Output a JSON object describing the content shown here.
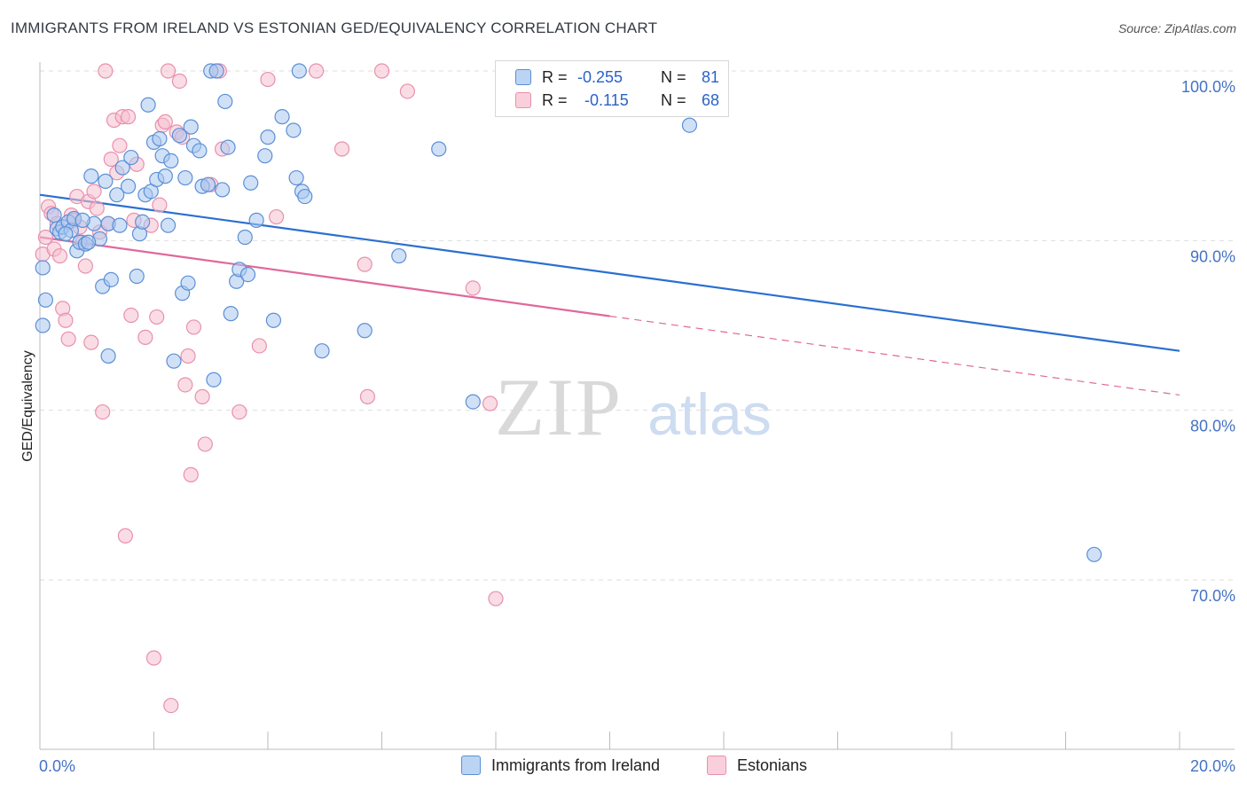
{
  "title": "IMMIGRANTS FROM IRELAND VS ESTONIAN GED/EQUIVALENCY CORRELATION CHART",
  "source": "Source: ZipAtlas.com",
  "watermark": {
    "zip": "ZIP",
    "atlas": "atlas"
  },
  "legend": {
    "rows": [
      {
        "r_label": "R =",
        "r_value": "-0.255",
        "n_label": "N =",
        "n_value": "81"
      },
      {
        "r_label": "R =",
        "r_value": "-0.115",
        "n_label": "N =",
        "n_value": "68"
      }
    ]
  },
  "bottom_legend": [
    "Immigrants from Ireland",
    "Estonians"
  ],
  "colors": {
    "blue_fill": "#aac8f0",
    "blue_stroke": "#5b8fd6",
    "blue_line": "#2a6fd0",
    "pink_fill": "#f6bfd0",
    "pink_stroke": "#e890ae",
    "pink_line": "#e0689a",
    "grid": "#dddddd",
    "tick_text": "#4472c4"
  },
  "chart_data": {
    "type": "scatter",
    "title": "IMMIGRANTS FROM IRELAND VS ESTONIAN GED/EQUIVALENCY CORRELATION CHART",
    "xlabel": "",
    "ylabel": "GED/Equivalency",
    "xlim": [
      0,
      20
    ],
    "ylim": [
      60.5,
      102.5
    ],
    "x_tick_labels": [
      "0.0%",
      "20.0%"
    ],
    "y_ticks": [
      70,
      80,
      90,
      100
    ],
    "y_tick_labels": [
      "70.0%",
      "80.0%",
      "90.0%",
      "100.0%"
    ],
    "grid": true,
    "legend_position": "top-center",
    "series": [
      {
        "name": "Immigrants from Ireland",
        "color": "#aac8f0",
        "r": -0.255,
        "n": 81,
        "trend": {
          "x": [
            0,
            20
          ],
          "y": [
            92.7,
            83.5
          ],
          "dashed_from": null
        },
        "points": [
          [
            0.05,
            88.4
          ],
          [
            0.1,
            86.5
          ],
          [
            0.05,
            85.0
          ],
          [
            0.25,
            91.5
          ],
          [
            0.3,
            90.7
          ],
          [
            0.35,
            90.5
          ],
          [
            0.4,
            90.8
          ],
          [
            0.5,
            91.1
          ],
          [
            0.55,
            90.6
          ],
          [
            0.6,
            91.3
          ],
          [
            0.65,
            89.4
          ],
          [
            0.7,
            89.9
          ],
          [
            0.8,
            89.8
          ],
          [
            0.9,
            93.8
          ],
          [
            0.95,
            91.0
          ],
          [
            1.05,
            90.1
          ],
          [
            1.1,
            87.3
          ],
          [
            1.15,
            93.5
          ],
          [
            1.2,
            91.0
          ],
          [
            1.25,
            87.7
          ],
          [
            1.35,
            92.7
          ],
          [
            1.45,
            94.3
          ],
          [
            1.55,
            93.2
          ],
          [
            1.6,
            94.9
          ],
          [
            1.7,
            87.9
          ],
          [
            1.75,
            90.4
          ],
          [
            1.8,
            91.1
          ],
          [
            1.85,
            92.7
          ],
          [
            1.9,
            98.0
          ],
          [
            1.95,
            92.9
          ],
          [
            2.0,
            95.8
          ],
          [
            2.05,
            93.6
          ],
          [
            2.1,
            96.0
          ],
          [
            2.15,
            95.0
          ],
          [
            2.2,
            93.8
          ],
          [
            2.25,
            90.9
          ],
          [
            2.3,
            94.7
          ],
          [
            2.35,
            82.9
          ],
          [
            2.45,
            96.2
          ],
          [
            2.5,
            86.9
          ],
          [
            2.55,
            93.7
          ],
          [
            2.6,
            87.5
          ],
          [
            2.65,
            96.7
          ],
          [
            2.7,
            95.6
          ],
          [
            2.8,
            95.3
          ],
          [
            2.85,
            93.2
          ],
          [
            2.95,
            93.3
          ],
          [
            3.0,
            100.0
          ],
          [
            3.05,
            81.8
          ],
          [
            3.1,
            100.0
          ],
          [
            3.2,
            93.0
          ],
          [
            3.25,
            98.2
          ],
          [
            3.3,
            95.5
          ],
          [
            3.35,
            85.7
          ],
          [
            3.45,
            87.6
          ],
          [
            3.5,
            88.3
          ],
          [
            3.6,
            90.2
          ],
          [
            3.65,
            88.0
          ],
          [
            3.7,
            93.4
          ],
          [
            3.8,
            91.2
          ],
          [
            3.95,
            95.0
          ],
          [
            4.0,
            96.1
          ],
          [
            4.1,
            85.3
          ],
          [
            4.25,
            97.3
          ],
          [
            4.45,
            96.5
          ],
          [
            4.5,
            93.7
          ],
          [
            4.55,
            100.0
          ],
          [
            4.6,
            92.9
          ],
          [
            4.65,
            92.6
          ],
          [
            4.95,
            83.5
          ],
          [
            5.7,
            84.7
          ],
          [
            6.3,
            89.1
          ],
          [
            7.0,
            95.4
          ],
          [
            7.6,
            80.5
          ],
          [
            11.4,
            96.8
          ],
          [
            18.5,
            71.5
          ],
          [
            1.2,
            83.2
          ],
          [
            0.75,
            91.2
          ],
          [
            0.45,
            90.4
          ],
          [
            0.85,
            89.9
          ],
          [
            1.4,
            90.9
          ]
        ]
      },
      {
        "name": "Estonians",
        "color": "#f6bfd0",
        "r": -0.115,
        "n": 68,
        "trend": {
          "x": [
            0,
            20
          ],
          "y": [
            90.2,
            80.9
          ],
          "dashed_from": 10.0
        },
        "points": [
          [
            0.05,
            89.2
          ],
          [
            0.1,
            90.2
          ],
          [
            0.15,
            92.0
          ],
          [
            0.2,
            91.6
          ],
          [
            0.25,
            89.5
          ],
          [
            0.3,
            91.0
          ],
          [
            0.35,
            89.1
          ],
          [
            0.4,
            86.0
          ],
          [
            0.45,
            85.3
          ],
          [
            0.5,
            84.2
          ],
          [
            0.55,
            91.5
          ],
          [
            0.6,
            91.2
          ],
          [
            0.65,
            92.6
          ],
          [
            0.7,
            90.8
          ],
          [
            0.75,
            89.9
          ],
          [
            0.8,
            88.5
          ],
          [
            0.85,
            92.3
          ],
          [
            0.9,
            84.0
          ],
          [
            0.95,
            92.9
          ],
          [
            1.0,
            91.9
          ],
          [
            1.05,
            90.5
          ],
          [
            1.1,
            79.9
          ],
          [
            1.15,
            100.0
          ],
          [
            1.2,
            91.0
          ],
          [
            1.3,
            97.1
          ],
          [
            1.35,
            94.0
          ],
          [
            1.4,
            95.6
          ],
          [
            1.45,
            97.3
          ],
          [
            1.5,
            72.6
          ],
          [
            1.55,
            97.3
          ],
          [
            1.6,
            85.6
          ],
          [
            1.65,
            91.2
          ],
          [
            1.7,
            94.5
          ],
          [
            1.85,
            84.3
          ],
          [
            1.95,
            90.9
          ],
          [
            2.0,
            65.4
          ],
          [
            2.05,
            85.5
          ],
          [
            2.1,
            92.1
          ],
          [
            2.15,
            96.8
          ],
          [
            2.2,
            97.0
          ],
          [
            2.25,
            100.0
          ],
          [
            2.3,
            62.6
          ],
          [
            2.4,
            96.4
          ],
          [
            2.45,
            99.4
          ],
          [
            2.5,
            96.1
          ],
          [
            2.55,
            81.5
          ],
          [
            2.6,
            83.2
          ],
          [
            2.65,
            76.2
          ],
          [
            2.7,
            84.9
          ],
          [
            2.85,
            80.8
          ],
          [
            2.9,
            78.0
          ],
          [
            3.0,
            93.3
          ],
          [
            3.15,
            100.0
          ],
          [
            3.2,
            95.4
          ],
          [
            3.5,
            79.9
          ],
          [
            3.85,
            83.8
          ],
          [
            4.0,
            99.5
          ],
          [
            4.15,
            91.4
          ],
          [
            4.85,
            100.0
          ],
          [
            5.3,
            95.4
          ],
          [
            5.7,
            88.6
          ],
          [
            5.75,
            80.8
          ],
          [
            6.0,
            100.0
          ],
          [
            6.45,
            98.8
          ],
          [
            7.6,
            87.2
          ],
          [
            7.9,
            80.4
          ],
          [
            8.0,
            68.9
          ],
          [
            1.25,
            94.8
          ]
        ]
      }
    ]
  }
}
